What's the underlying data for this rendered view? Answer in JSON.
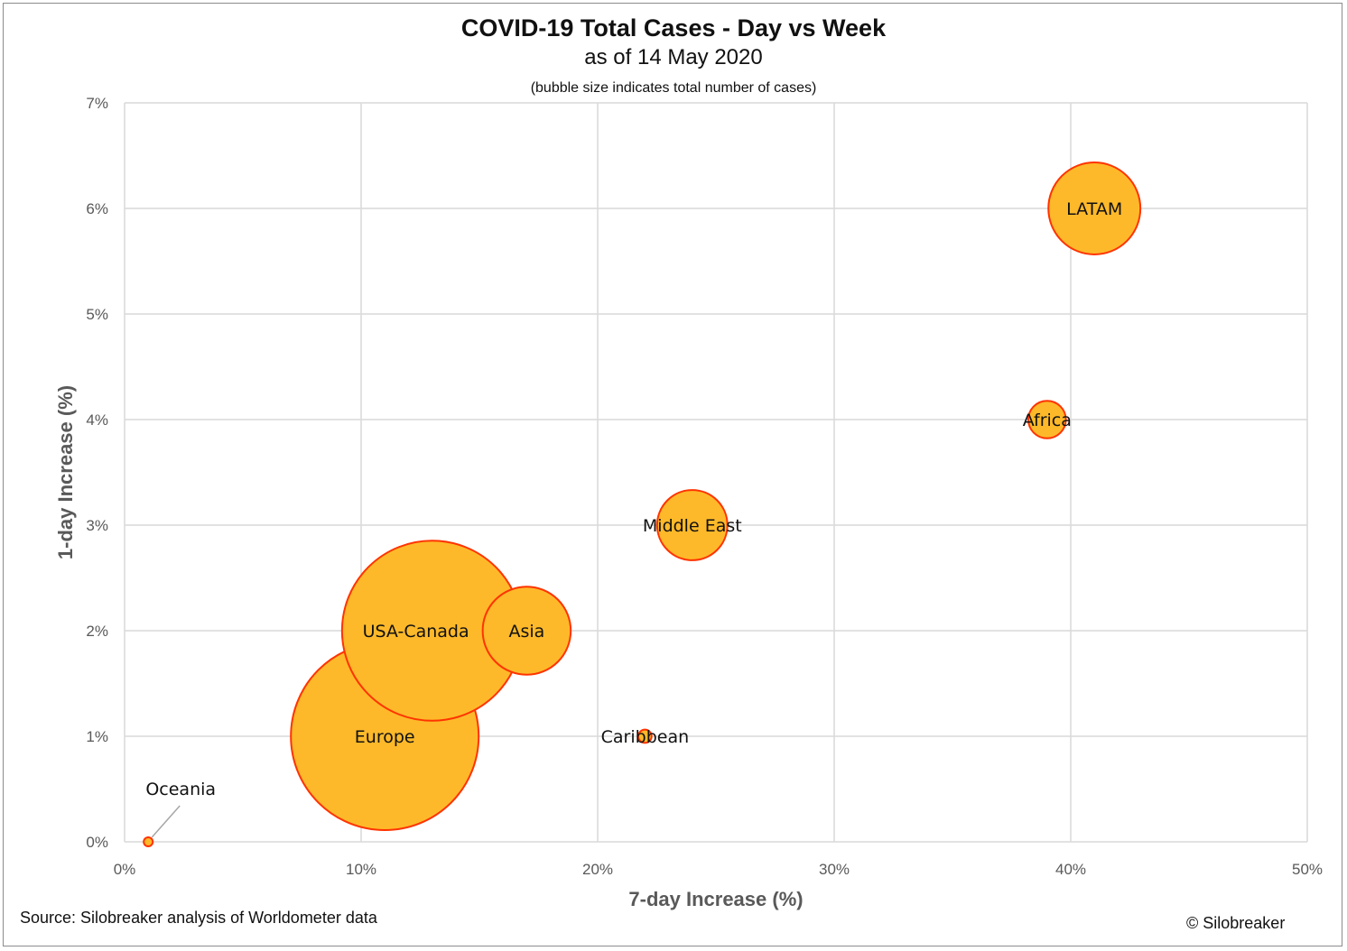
{
  "chart_data": {
    "type": "bubble",
    "title": "COVID-19 Total Cases - Day vs Week",
    "subtitle": "as of 14 May 2020",
    "note": "(bubble size indicates total number of cases)",
    "xlabel": "7-day Increase (%)",
    "ylabel": "1-day Increase (%)",
    "xlim": [
      0,
      50
    ],
    "ylim": [
      0,
      7
    ],
    "x_ticks": [
      0,
      10,
      20,
      30,
      40,
      50
    ],
    "y_ticks": [
      0,
      1,
      2,
      3,
      4,
      5,
      6,
      7
    ],
    "x_tick_labels": [
      "0%",
      "10%",
      "20%",
      "30%",
      "40%",
      "50%"
    ],
    "y_tick_labels": [
      "0%",
      "1%",
      "2%",
      "3%",
      "4%",
      "5%",
      "6%",
      "7%"
    ],
    "grid": true,
    "bubble_fill": "#FDB92A",
    "bubble_stroke": "#FF3300",
    "grid_color": "#d9d9d9",
    "points": [
      {
        "label": "Europe",
        "x": 11,
        "y": 1,
        "size": 1.0
      },
      {
        "label": "USA-Canada",
        "x": 13,
        "y": 2,
        "size": 0.92
      },
      {
        "label": "Asia",
        "x": 17,
        "y": 2,
        "size": 0.22
      },
      {
        "label": "Middle East",
        "x": 24,
        "y": 3,
        "size": 0.14
      },
      {
        "label": "LATAM",
        "x": 41,
        "y": 6,
        "size": 0.24
      },
      {
        "label": "Africa",
        "x": 39,
        "y": 4,
        "size": 0.04
      },
      {
        "label": "Caribbean",
        "x": 22,
        "y": 1,
        "size": 0.005
      },
      {
        "label": "Oceania",
        "x": 1,
        "y": 0,
        "size": 0.002
      }
    ]
  },
  "source": "Source: Silobreaker analysis of Worldometer data",
  "copyright": "© Silobreaker"
}
